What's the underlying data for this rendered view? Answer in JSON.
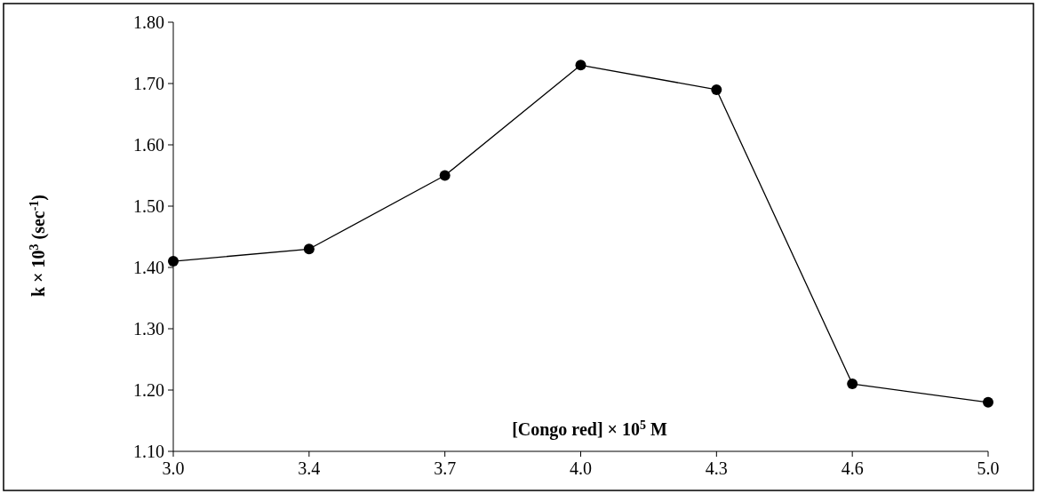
{
  "chart_data": {
    "type": "line",
    "xlabel": "[Congo red] × 10$^{5}$ M",
    "ylabel": "k × 10$^{3}$ (sec$^{-1}$)",
    "categories": [
      "3.0",
      "3.4",
      "3.7",
      "4.0",
      "4.3",
      "4.6",
      "5.0"
    ],
    "series": [
      {
        "color": "#000000",
        "values": [
          1.41,
          1.43,
          1.55,
          1.73,
          1.69,
          1.21,
          1.18
        ]
      }
    ],
    "ylim": [
      1.1,
      1.8
    ],
    "yticks": [
      {
        "value": 1.1,
        "label": "1.10"
      },
      {
        "value": 1.2,
        "label": "1.20"
      },
      {
        "value": 1.3,
        "label": "1.30"
      },
      {
        "value": 1.4,
        "label": "1.40"
      },
      {
        "value": 1.5,
        "label": "1.50"
      },
      {
        "value": 1.6,
        "label": "1.60"
      },
      {
        "value": 1.7,
        "label": "1.70"
      },
      {
        "value": 1.8,
        "label": "1.80"
      }
    ],
    "grid": false,
    "marker": "circle",
    "line_style": "solid"
  }
}
